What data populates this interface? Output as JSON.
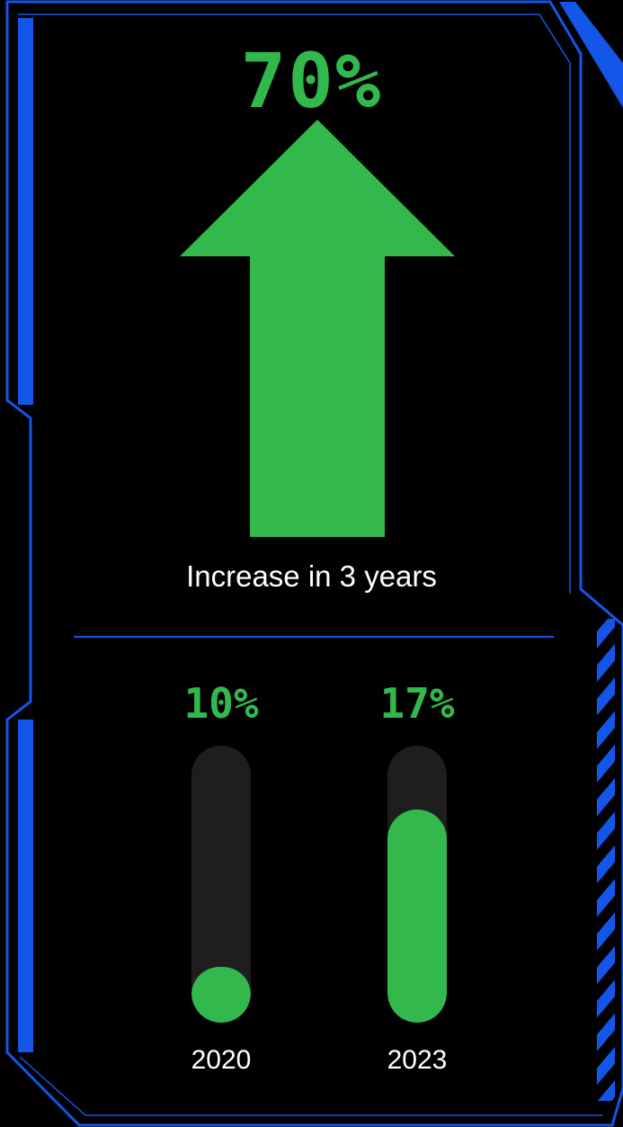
{
  "headline": "70%",
  "caption": "Increase in 3 years",
  "colors": {
    "frame": "#1456e8",
    "accent": "#33b84c",
    "track": "#1e1e1e",
    "background": "#000000"
  },
  "bars": [
    {
      "value_label": "10%",
      "year": "2020",
      "fill_fraction": 0.2
    },
    {
      "value_label": "17%",
      "year": "2023",
      "fill_fraction": 0.77
    }
  ]
}
